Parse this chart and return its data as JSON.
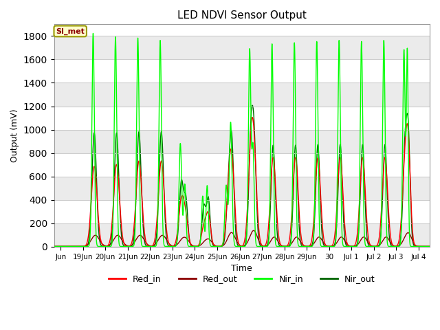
{
  "title": "LED NDVI Sensor Output",
  "xlabel": "Time",
  "ylabel": "Output (mV)",
  "ylim": [
    0,
    1900
  ],
  "yticks": [
    0,
    200,
    400,
    600,
    800,
    1000,
    1200,
    1400,
    1600,
    1800
  ],
  "annotation_text": "SI_met",
  "colors": {
    "Red_in": "#ff0000",
    "Red_out": "#8B0000",
    "Nir_in": "#00ff00",
    "Nir_out": "#006400"
  },
  "background_color": "#ffffff",
  "grid_color": "#d8d8d8",
  "tick_labels": [
    "Jun",
    "19Jun",
    "20Jun",
    "21Jun",
    "22Jun",
    "23Jun",
    "24Jun",
    "25Jun",
    "26Jun",
    "27Jun",
    "28Jun",
    "29Jun",
    "30",
    "Jul 1",
    "Jul 2",
    "Jul 3",
    "Jul 4"
  ],
  "tick_positions": [
    0,
    1,
    2,
    3,
    4,
    5,
    6,
    7,
    8,
    9,
    10,
    11,
    12,
    13,
    14,
    15,
    16
  ],
  "xlim": [
    -0.3,
    16.5
  ]
}
